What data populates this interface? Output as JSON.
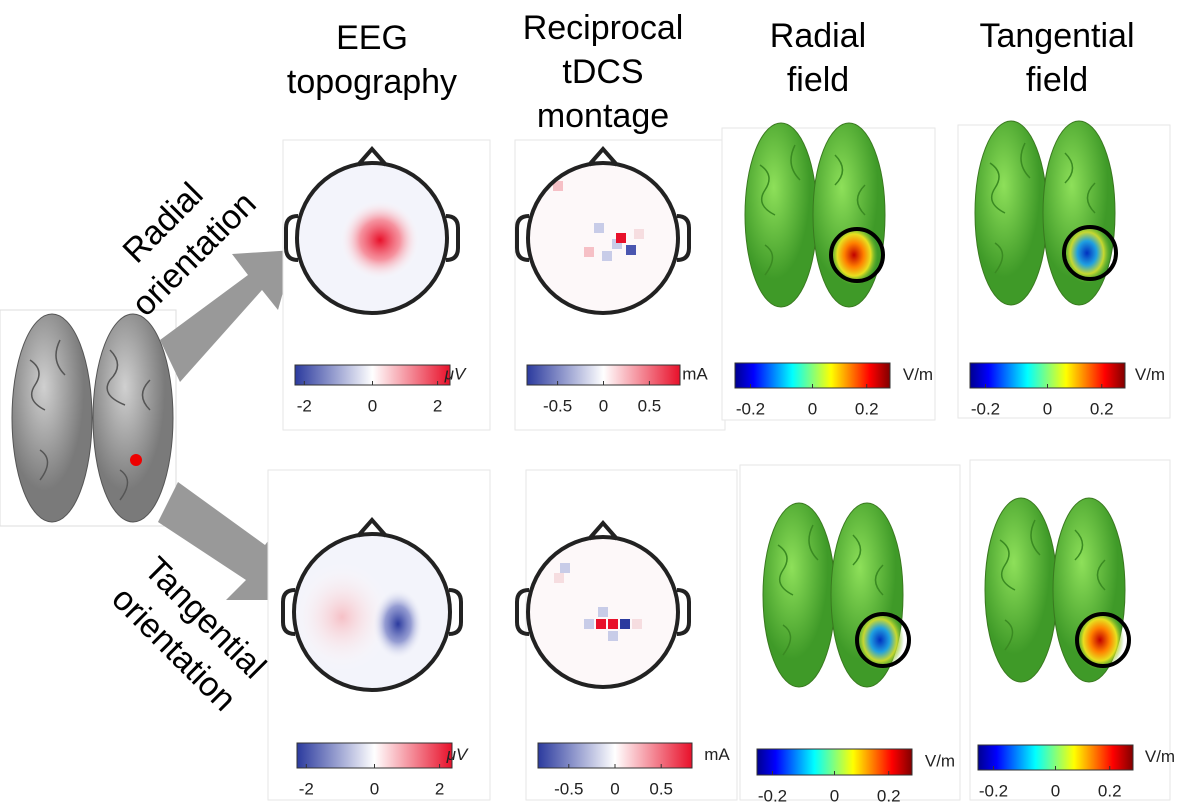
{
  "columns": [
    {
      "title": [
        "EEG",
        "topography"
      ]
    },
    {
      "title": [
        "Reciprocal",
        "tDCS",
        "montage"
      ]
    },
    {
      "title": [
        "Radial",
        "field"
      ]
    },
    {
      "title": [
        "Tangential",
        "field"
      ]
    }
  ],
  "rows": [
    {
      "label": [
        "Radial",
        "orientation"
      ],
      "panels": [
        {
          "ticks": [
            "-2",
            "0",
            "2"
          ],
          "unit": "μV"
        },
        {
          "ticks": [
            "-0.5",
            "0",
            "0.5"
          ],
          "unit": "mA"
        },
        {
          "ticks": [
            "-0.2",
            "0",
            "0.2"
          ],
          "unit": "V/m"
        },
        {
          "ticks": [
            "-0.2",
            "0",
            "0.2"
          ],
          "unit": "V/m"
        }
      ]
    },
    {
      "label": [
        "Tangential",
        "orientation"
      ],
      "panels": [
        {
          "ticks": [
            "-2",
            "0",
            "2"
          ],
          "unit": "μV"
        },
        {
          "ticks": [
            "-0.5",
            "0",
            "0.5"
          ],
          "unit": "mA"
        },
        {
          "ticks": [
            "-0.2",
            "0",
            "0.2"
          ],
          "unit": "V/m"
        },
        {
          "ticks": [
            "-0.2",
            "0",
            "0.2"
          ],
          "unit": "V/m"
        }
      ]
    }
  ]
}
